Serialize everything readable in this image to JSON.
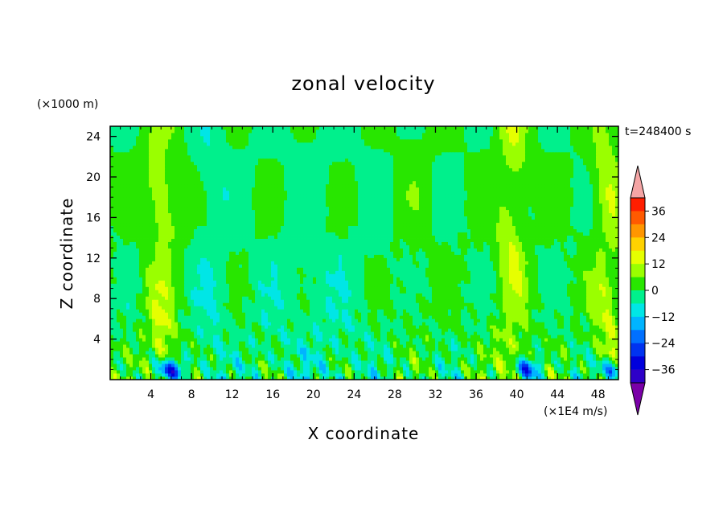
{
  "chart_data": {
    "type": "heatmap",
    "title": "zonal velocity",
    "xlabel": "X coordinate",
    "ylabel": "Z coordinate",
    "y_unit_label": "(×1000 m)",
    "x_unit_label": "(×1E4 m/s)",
    "time_label": "t=248400 s",
    "xlim": [
      0,
      50
    ],
    "ylim": [
      0,
      25
    ],
    "x_ticks": [
      4,
      8,
      12,
      16,
      20,
      24,
      28,
      32,
      36,
      40,
      44,
      48
    ],
    "y_ticks": [
      4,
      8,
      12,
      16,
      20,
      24
    ],
    "x_tick_labels": [
      "4",
      "8",
      "12",
      "16",
      "20",
      "24",
      "28",
      "32",
      "36",
      "40",
      "44",
      "48"
    ],
    "y_tick_labels": [
      "4",
      "8",
      "12",
      "16",
      "20",
      "24"
    ],
    "colorbar": {
      "levels": [
        -42,
        -36,
        -30,
        -24,
        -18,
        -12,
        -6,
        0,
        6,
        12,
        18,
        24,
        30,
        36,
        42
      ],
      "tick_labels": [
        "36",
        "24",
        "12",
        "0",
        "−12",
        "−24",
        "−36"
      ],
      "colors": [
        "#7a00a8",
        "#2e00c8",
        "#0000dc",
        "#0033f0",
        "#0070ff",
        "#00b4ff",
        "#00e6e6",
        "#00f08c",
        "#28e600",
        "#9aff00",
        "#e6ff00",
        "#ffd200",
        "#ff9600",
        "#ff5a00",
        "#ff1e00",
        "#f5a5a5"
      ]
    },
    "grid": false,
    "legend": "colorbar right",
    "field_description_values": {
      "bands": [
        {
          "x": 5,
          "z_range": [
            0,
            25
          ],
          "u": 12
        },
        {
          "x": 10,
          "z_range": [
            0,
            25
          ],
          "u": -6
        },
        {
          "x": 39.5,
          "z_range": [
            0,
            25
          ],
          "u": 12
        },
        {
          "x": 49,
          "z_range": [
            0,
            25
          ],
          "u": 12
        },
        {
          "x": 30,
          "z_range": [
            6,
            25
          ],
          "u": 3
        }
      ],
      "minima": [
        {
          "x": 6,
          "z": 1,
          "u": -30
        },
        {
          "x": 41,
          "z": 1,
          "u": -24
        },
        {
          "x": 49.5,
          "z": 1,
          "u": -24
        }
      ]
    }
  }
}
